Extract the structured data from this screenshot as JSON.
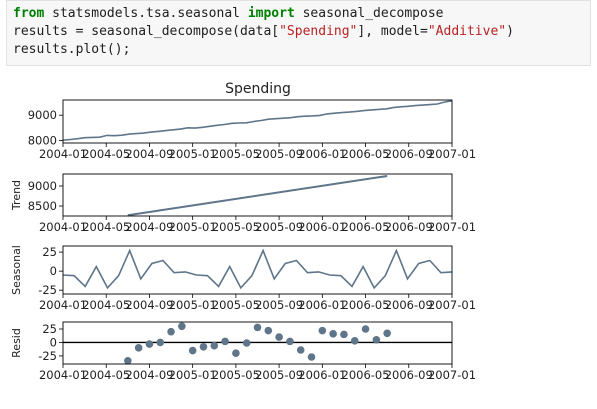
{
  "code": {
    "line1": {
      "kw1": "from",
      "module": " statsmodels.tsa.seasonal ",
      "kw2": "import",
      "name": " seasonal_decompose"
    },
    "line2": {
      "pre": "results = seasonal_decompose(data[",
      "str1": "\"Spending\"",
      "mid": "], model=",
      "str2": "\"Additive\"",
      "post": ")"
    },
    "line3": {
      "text": "results.plot();"
    }
  },
  "figure": {
    "title": "Spending",
    "line_color": "#5f7589",
    "marker_color": "#5f7589",
    "zero_line_color": "#000000"
  },
  "chart_data": [
    {
      "type": "line",
      "title": "Spending",
      "ylabel": "",
      "x_ticks": [
        "2004-01",
        "2004-05",
        "2004-09",
        "2005-01",
        "2005-05",
        "2005-09",
        "2006-01",
        "2006-05",
        "2006-09",
        "2007-01"
      ],
      "y_ticks": [
        8000,
        9000
      ],
      "ylim": [
        7900,
        9600
      ],
      "x_start": "2004-01",
      "values": [
        8010,
        8040,
        8070,
        8110,
        8120,
        8130,
        8200,
        8190,
        8210,
        8250,
        8270,
        8290,
        8330,
        8360,
        8390,
        8420,
        8450,
        8500,
        8490,
        8520,
        8560,
        8600,
        8630,
        8680,
        8690,
        8700,
        8750,
        8790,
        8840,
        8860,
        8880,
        8900,
        8940,
        8960,
        8970,
        8990,
        9050,
        9080,
        9100,
        9120,
        9150,
        9180,
        9210,
        9230,
        9250,
        9300,
        9330,
        9350,
        9380,
        9400,
        9420,
        9440,
        9520,
        9570
      ]
    },
    {
      "type": "line",
      "title": "",
      "ylabel": "Trend",
      "x_ticks": [
        "2004-01",
        "2004-05",
        "2004-09",
        "2005-01",
        "2005-05",
        "2005-09",
        "2006-01",
        "2006-05",
        "2006-09",
        "2007-01"
      ],
      "y_ticks": [
        8500,
        9000
      ],
      "ylim": [
        8250,
        9300
      ],
      "x_start": "2004-07",
      "x_end": "2006-07",
      "values": [
        8270,
        9250
      ]
    },
    {
      "type": "line",
      "title": "",
      "ylabel": "Seasonal",
      "x_ticks": [
        "2004-01",
        "2004-05",
        "2004-09",
        "2005-01",
        "2005-05",
        "2005-09",
        "2006-01",
        "2006-05",
        "2006-09",
        "2007-01"
      ],
      "y_ticks": [
        -25,
        0,
        25
      ],
      "ylim": [
        -30,
        33
      ],
      "x_start": "2004-01",
      "values": [
        -5,
        -6,
        -20,
        6,
        -22,
        -6,
        27,
        -10,
        10,
        14,
        -2,
        -1,
        -5,
        -6,
        -20,
        6,
        -22,
        -6,
        27,
        -10,
        10,
        14,
        -2,
        -1,
        -5,
        -6,
        -20,
        6,
        -22,
        -6,
        27,
        -10,
        10,
        14,
        -2,
        -1
      ]
    },
    {
      "type": "scatter",
      "title": "",
      "ylabel": "Resid",
      "x_ticks": [
        "2004-01",
        "2004-05",
        "2004-09",
        "2005-01",
        "2005-05",
        "2005-09",
        "2006-01",
        "2006-05",
        "2006-09",
        "2007-01"
      ],
      "y_ticks": [
        -25,
        0,
        25
      ],
      "ylim": [
        -40,
        38
      ],
      "x_start": "2004-07",
      "points": [
        [
          "2004-07",
          -34
        ],
        [
          "2004-08",
          -10
        ],
        [
          "2004-09",
          -3
        ],
        [
          "2004-10",
          0
        ],
        [
          "2004-11",
          20
        ],
        [
          "2004-12",
          30
        ],
        [
          "2005-01",
          -15
        ],
        [
          "2005-02",
          -8
        ],
        [
          "2005-03",
          -6
        ],
        [
          "2005-04",
          2
        ],
        [
          "2005-05",
          -20
        ],
        [
          "2005-06",
          -1
        ],
        [
          "2005-07",
          28
        ],
        [
          "2005-08",
          22
        ],
        [
          "2005-09",
          10
        ],
        [
          "2005-10",
          2
        ],
        [
          "2005-11",
          -14
        ],
        [
          "2005-12",
          -27
        ],
        [
          "2006-01",
          22
        ],
        [
          "2006-02",
          16
        ],
        [
          "2006-03",
          15
        ],
        [
          "2006-04",
          3
        ],
        [
          "2006-05",
          25
        ],
        [
          "2006-06",
          5
        ],
        [
          "2006-07",
          17
        ]
      ]
    }
  ]
}
